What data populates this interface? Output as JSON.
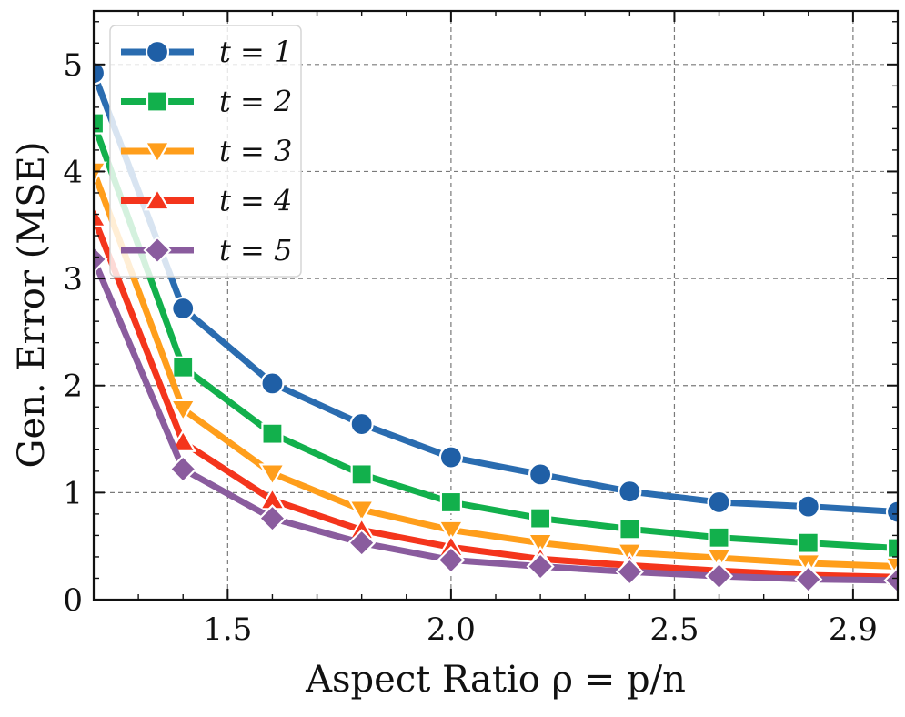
{
  "chart_data": {
    "type": "line",
    "title": "",
    "xlabel": "Aspect Ratio ρ = p/n",
    "ylabel": "Gen. Error (MSE)",
    "xlim": [
      1.2,
      3.0
    ],
    "ylim": [
      0,
      5.5
    ],
    "x_ticks": [
      1.5,
      2.0,
      2.5,
      2.9
    ],
    "x_tick_labels": [
      "1.5",
      "2.0",
      "2.5",
      "2.9"
    ],
    "y_ticks": [
      0,
      1,
      2,
      3,
      4,
      5
    ],
    "y_tick_labels": [
      "0",
      "1",
      "2",
      "3",
      "4",
      "5"
    ],
    "grid": true,
    "legend_position": "top-left",
    "x": [
      1.2,
      1.4,
      1.6,
      1.8,
      2.0,
      2.2,
      2.4,
      2.6,
      2.8,
      3.0
    ],
    "series": [
      {
        "name": "t = 1",
        "marker": "circle",
        "color": "#1f5fa6",
        "line_color": "#2a6cb0",
        "values": [
          4.92,
          2.72,
          2.02,
          1.64,
          1.33,
          1.17,
          1.01,
          0.91,
          0.87,
          0.82
        ]
      },
      {
        "name": "t = 2",
        "marker": "square",
        "color": "#12b04c",
        "line_color": "#12b04c",
        "values": [
          4.45,
          2.17,
          1.55,
          1.17,
          0.91,
          0.76,
          0.66,
          0.58,
          0.53,
          0.48
        ]
      },
      {
        "name": "t = 3",
        "marker": "triangle-down",
        "color": "#ff9e1b",
        "line_color": "#ff9e1b",
        "values": [
          4.0,
          1.78,
          1.18,
          0.84,
          0.65,
          0.53,
          0.44,
          0.39,
          0.34,
          0.31
        ]
      },
      {
        "name": "t = 4",
        "marker": "triangle-up",
        "color": "#f4351c",
        "line_color": "#f4351c",
        "values": [
          3.57,
          1.47,
          0.93,
          0.65,
          0.49,
          0.38,
          0.32,
          0.27,
          0.23,
          0.21
        ]
      },
      {
        "name": "t = 5",
        "marker": "diamond",
        "color": "#8a5c9e",
        "line_color": "#8a5c9e",
        "values": [
          3.18,
          1.22,
          0.76,
          0.53,
          0.37,
          0.31,
          0.26,
          0.22,
          0.19,
          0.18
        ]
      }
    ]
  }
}
